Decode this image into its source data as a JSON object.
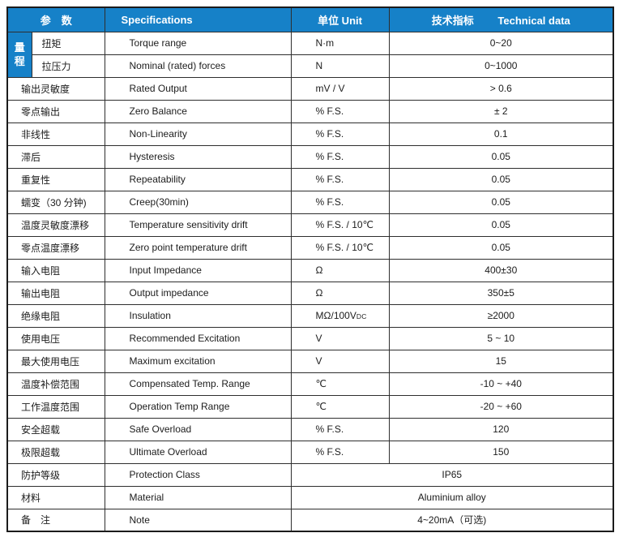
{
  "colors": {
    "header_bg": "#1681c8",
    "header_text": "#ffffff",
    "grid_line": "#2e2e2e",
    "body_text": "#1c1c1c"
  },
  "header": {
    "param": "参　数",
    "spec": "Specifications",
    "unit": "单位 Unit",
    "tech_cn": "技术指标",
    "tech_en": "Technical data"
  },
  "range_group": {
    "label": "量程",
    "chars": [
      "量",
      "程"
    ]
  },
  "rows": [
    {
      "param": "扭矩",
      "spec": "Torque range",
      "unit": "N·m",
      "value": "0~20",
      "group": "start"
    },
    {
      "param": "拉压力",
      "spec": "Nominal (rated) forces",
      "unit": "N",
      "value": "0~1000",
      "group": "in"
    },
    {
      "param": "输出灵敏度",
      "spec": "Rated Output",
      "unit": "mV / V",
      "value": "> 0.6"
    },
    {
      "param": "零点输出",
      "spec": "Zero Balance",
      "unit": "% F.S.",
      "value": "± 2"
    },
    {
      "param": "非线性",
      "spec": "Non-Linearity",
      "unit": "% F.S.",
      "value": "0.1"
    },
    {
      "param": "滞后",
      "spec": "Hysteresis",
      "unit": "% F.S.",
      "value": "0.05"
    },
    {
      "param": "重复性",
      "spec": "Repeatability",
      "unit": "% F.S.",
      "value": "0.05"
    },
    {
      "param": "蠕变（30 分钟)",
      "spec": "Creep(30min)",
      "unit": "% F.S.",
      "value": "0.05"
    },
    {
      "param": "温度灵敏度漂移",
      "spec": "Temperature sensitivity drift",
      "unit": "% F.S. / 10℃",
      "value": "0.05"
    },
    {
      "param": "零点温度漂移",
      "spec": "Zero point temperature drift",
      "unit": "% F.S. / 10℃",
      "value": "0.05"
    },
    {
      "param": "输入电阻",
      "spec": "Input Impedance",
      "unit": "Ω",
      "value": "400±30"
    },
    {
      "param": "输出电阻",
      "spec": "Output impedance",
      "unit": "Ω",
      "value": "350±5"
    },
    {
      "param": "绝缘电阻",
      "spec": "Insulation",
      "unit": "MΩ/100V",
      "unit_sub": "DC",
      "value": "≥2000"
    },
    {
      "param": "使用电压",
      "spec": "Recommended Excitation",
      "unit": "V",
      "value": "5 ~ 10"
    },
    {
      "param": "最大使用电压",
      "spec": "Maximum excitation",
      "unit": "V",
      "value": "15"
    },
    {
      "param": "温度补偿范围",
      "spec": "Compensated Temp. Range",
      "unit": "℃",
      "value": "-10 ~  +40"
    },
    {
      "param": "工作温度范围",
      "spec": "Operation Temp Range",
      "unit": "℃",
      "value": "-20 ~  +60"
    },
    {
      "param": "安全超载",
      "spec": "Safe Overload",
      "unit": "% F.S.",
      "value": "120"
    },
    {
      "param": "极限超载",
      "spec": "Ultimate Overload",
      "unit": "% F.S.",
      "value": "150"
    },
    {
      "param": "防护等级",
      "spec": "Protection Class",
      "merged": true,
      "value": "IP65"
    },
    {
      "param": "材料",
      "spec": "Material",
      "merged": true,
      "value": "Aluminium alloy"
    },
    {
      "param": "备　注",
      "spec": "Note",
      "merged": true,
      "value": "4~20mA（可选)"
    }
  ]
}
